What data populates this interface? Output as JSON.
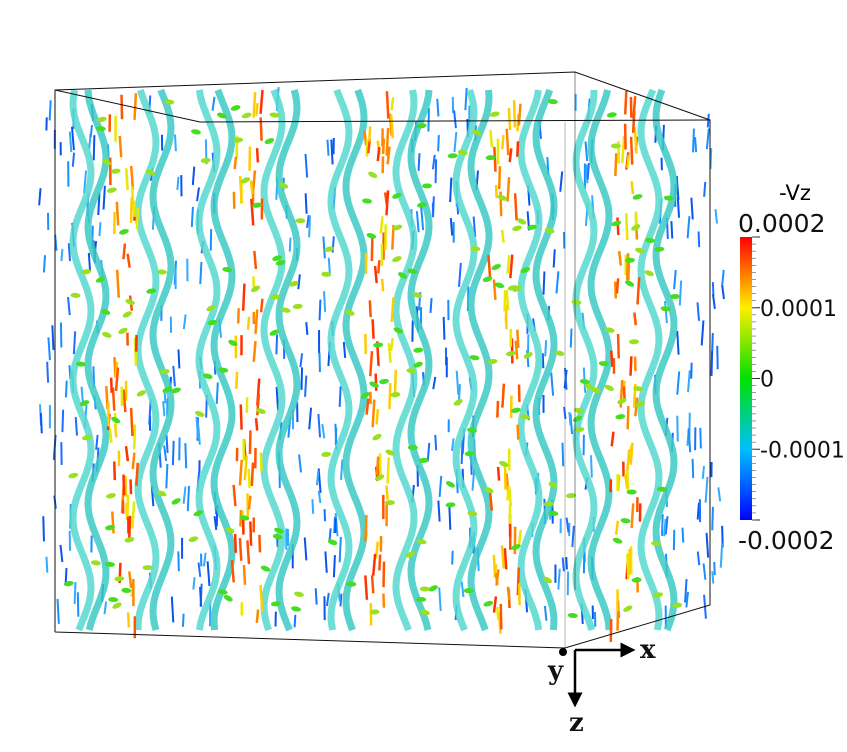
{
  "colorbar": {
    "title": "-Vz",
    "ticks": [
      0.0002,
      0.0001,
      0,
      -0.0001,
      -0.0002
    ]
  },
  "axes": {
    "x": "x",
    "y": "y",
    "z": "z"
  }
}
